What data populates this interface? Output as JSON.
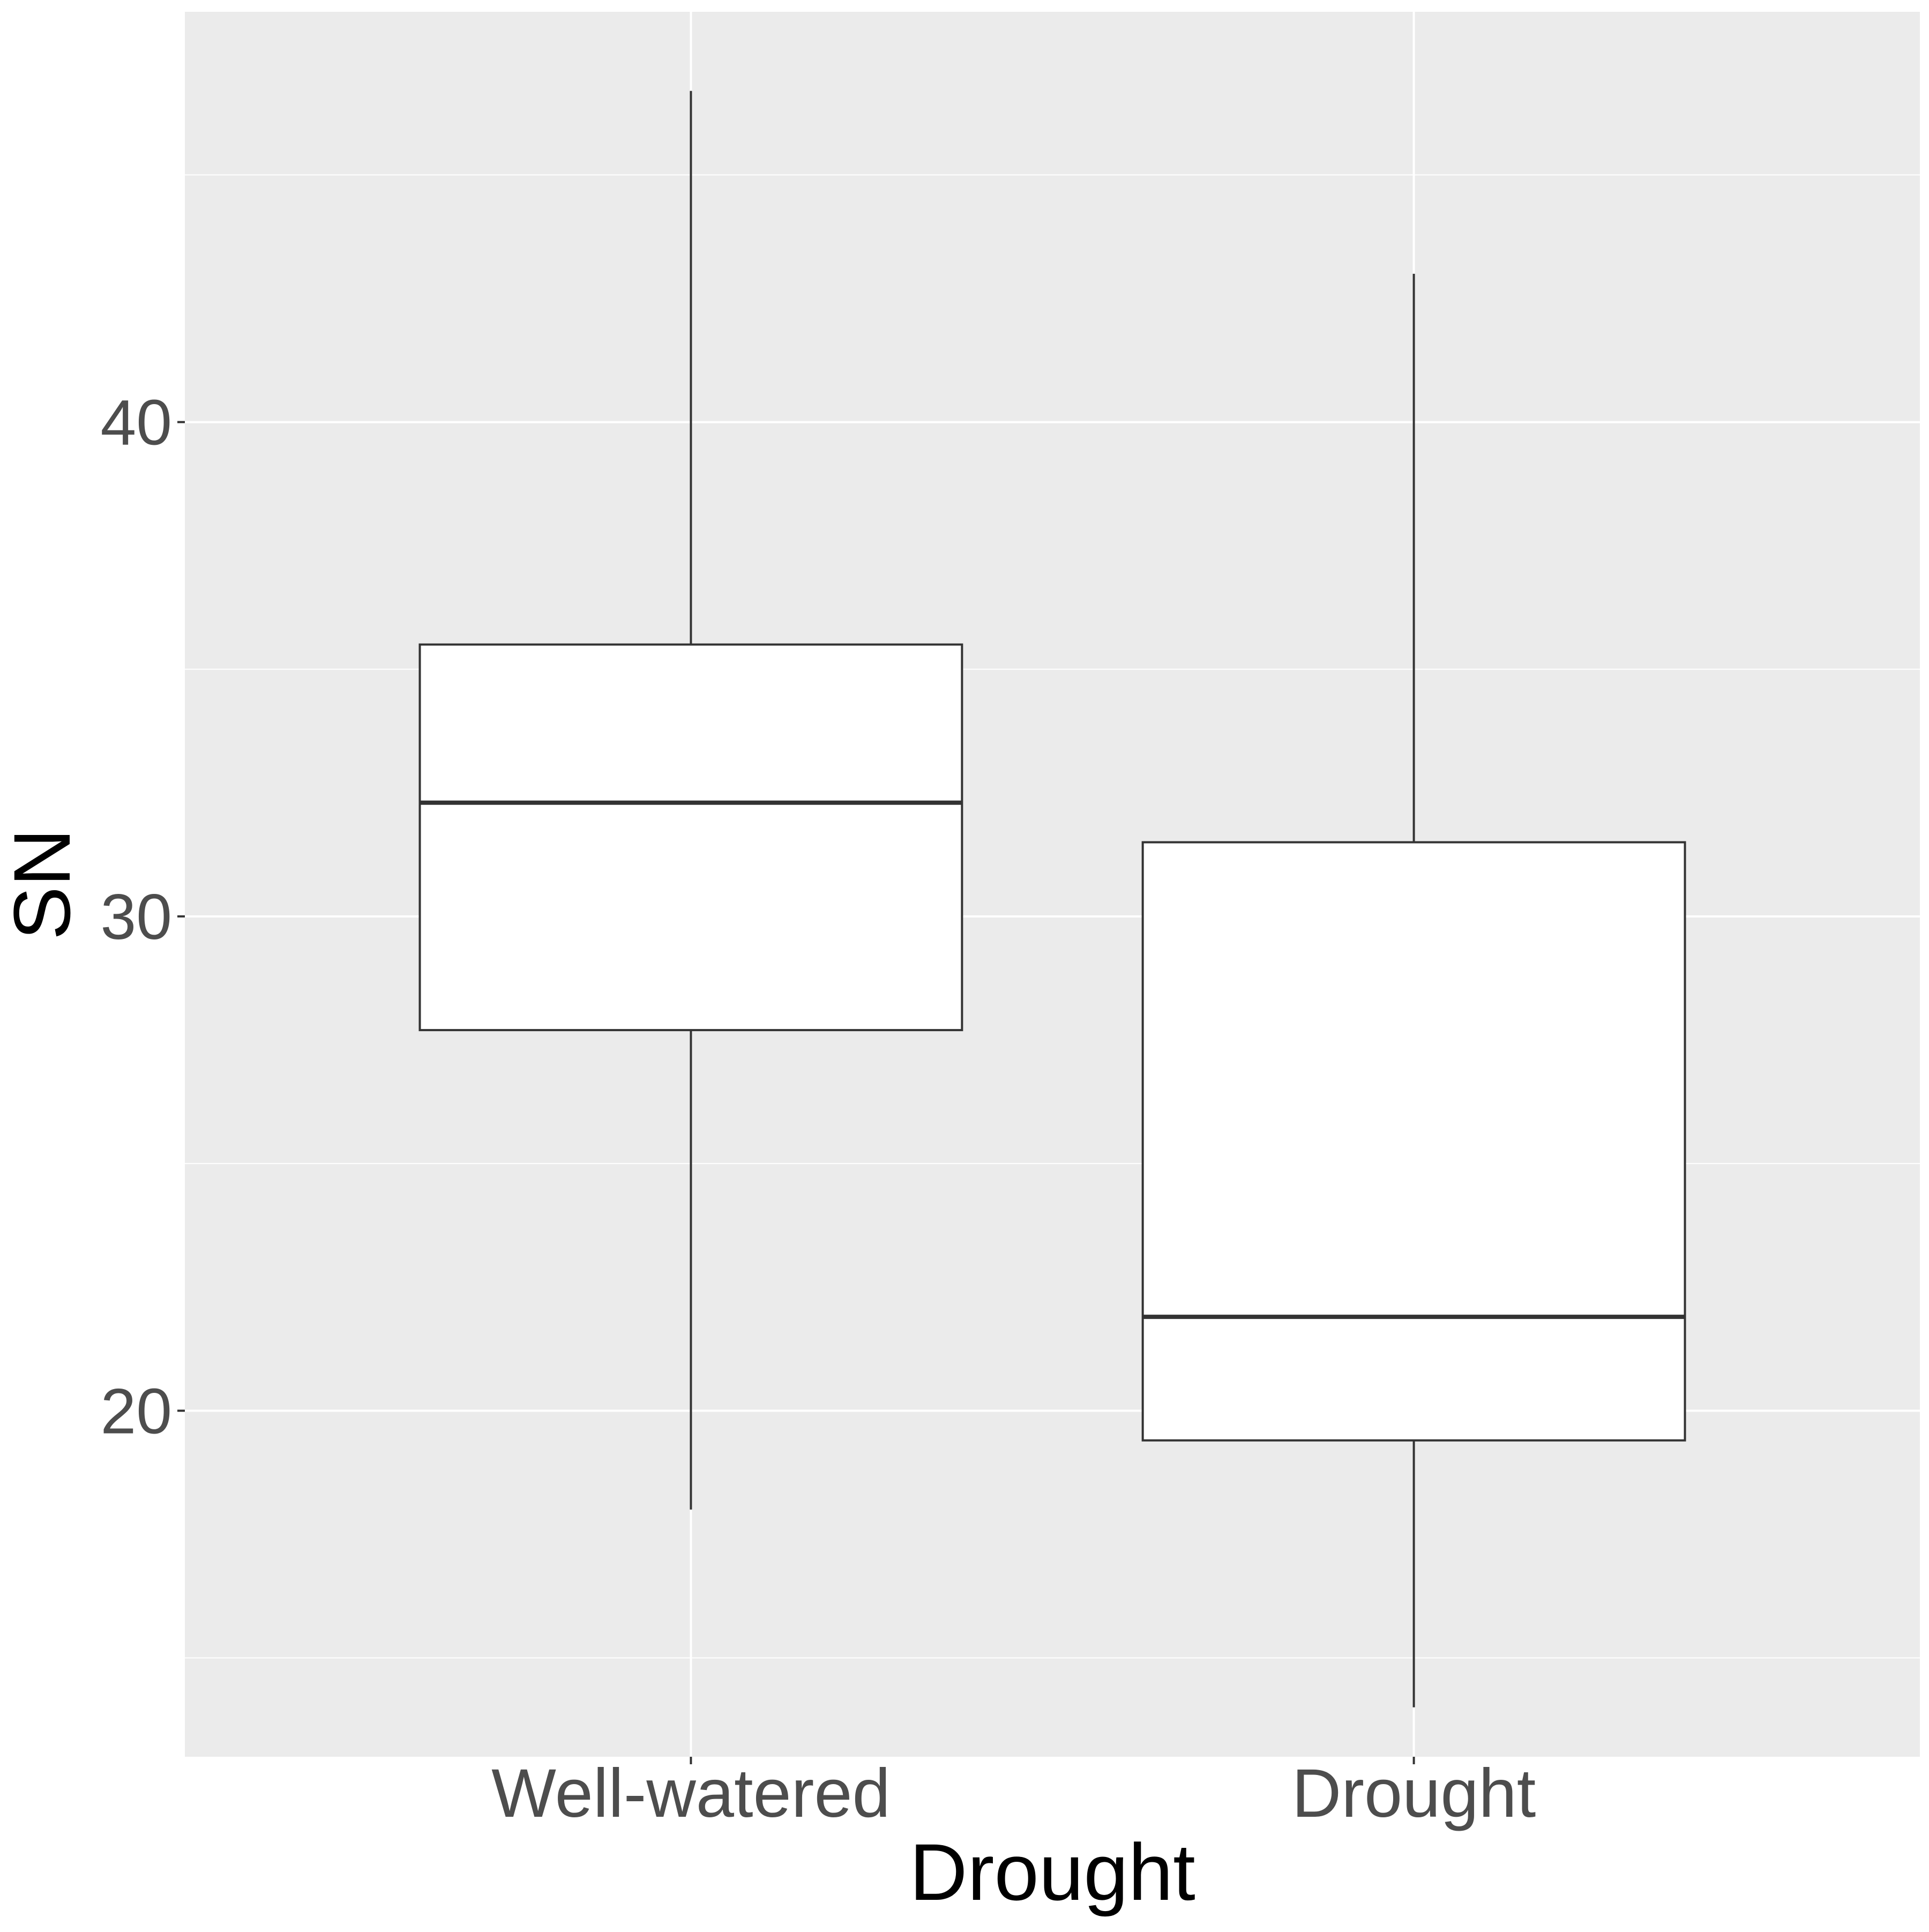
{
  "chart_data": {
    "type": "boxplot",
    "title": "",
    "xlabel": "Drought",
    "ylabel": "SN",
    "categories": [
      "Well-watered",
      "Drought"
    ],
    "boxes": [
      {
        "category": "Well-watered",
        "whisker_low": 18.0,
        "q1": 27.7,
        "median": 32.3,
        "q3": 35.5,
        "whisker_high": 46.7
      },
      {
        "category": "Drought",
        "whisker_low": 14.0,
        "q1": 19.4,
        "median": 21.9,
        "q3": 31.5,
        "whisker_high": 43.0
      }
    ],
    "yticks": [
      20,
      30,
      40
    ],
    "ylim": [
      13.0,
      48.3
    ],
    "grid": true,
    "legend": "none"
  },
  "colors": {
    "panel_background": "#EBEBEB",
    "grid_major": "#FFFFFF",
    "grid_minor": "#FFFFFF",
    "box_fill": "#FFFFFF",
    "box_line": "#333333",
    "tick_label": "#4D4D4D",
    "axis_title": "#000000"
  }
}
